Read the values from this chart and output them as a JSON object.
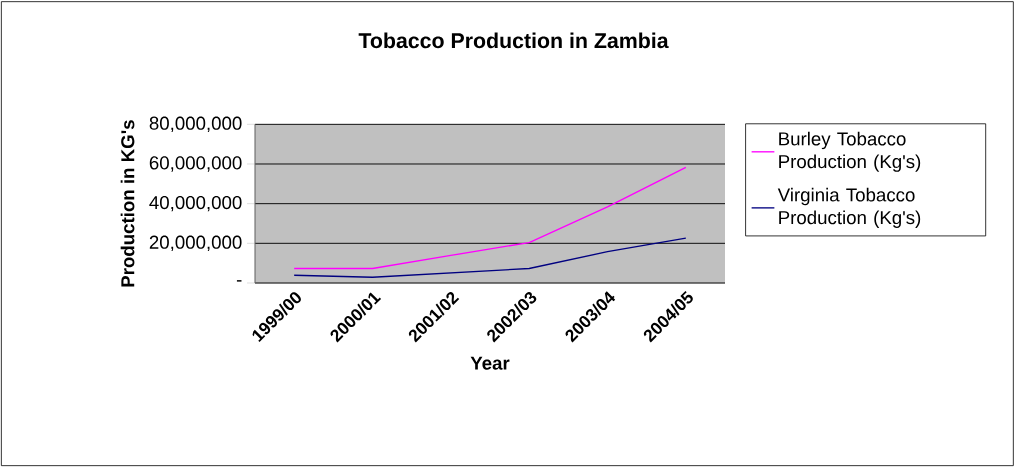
{
  "chart_data": {
    "type": "line",
    "title": "Tobacco Production in Zambia",
    "xlabel": "Year",
    "ylabel": "Production in KG's",
    "categories": [
      "1999/00",
      "2000/01",
      "2001/02",
      "2002/03",
      "2003/04",
      "2004/05"
    ],
    "series": [
      {
        "name": "Burley Tobacco Production (Kg's)",
        "color": "#ff00ff",
        "values": [
          7300000,
          7300000,
          13900000,
          20400000,
          38400000,
          58300000
        ]
      },
      {
        "name": "Virginia Tobacco Production (Kg's)",
        "color": "#000080",
        "values": [
          3900000,
          2900000,
          5100000,
          7300000,
          15800000,
          22600000
        ]
      }
    ],
    "ylim": [
      0,
      80000000
    ],
    "yticks": [
      {
        "value": 0,
        "label": "-"
      },
      {
        "value": 20000000,
        "label": "20,000,000"
      },
      {
        "value": 40000000,
        "label": "40,000,000"
      },
      {
        "value": 60000000,
        "label": "60,000,000"
      },
      {
        "value": 80000000,
        "label": "80,000,000"
      }
    ],
    "grid": "y",
    "legend": "right",
    "marker": "none",
    "line_style": "solid"
  }
}
